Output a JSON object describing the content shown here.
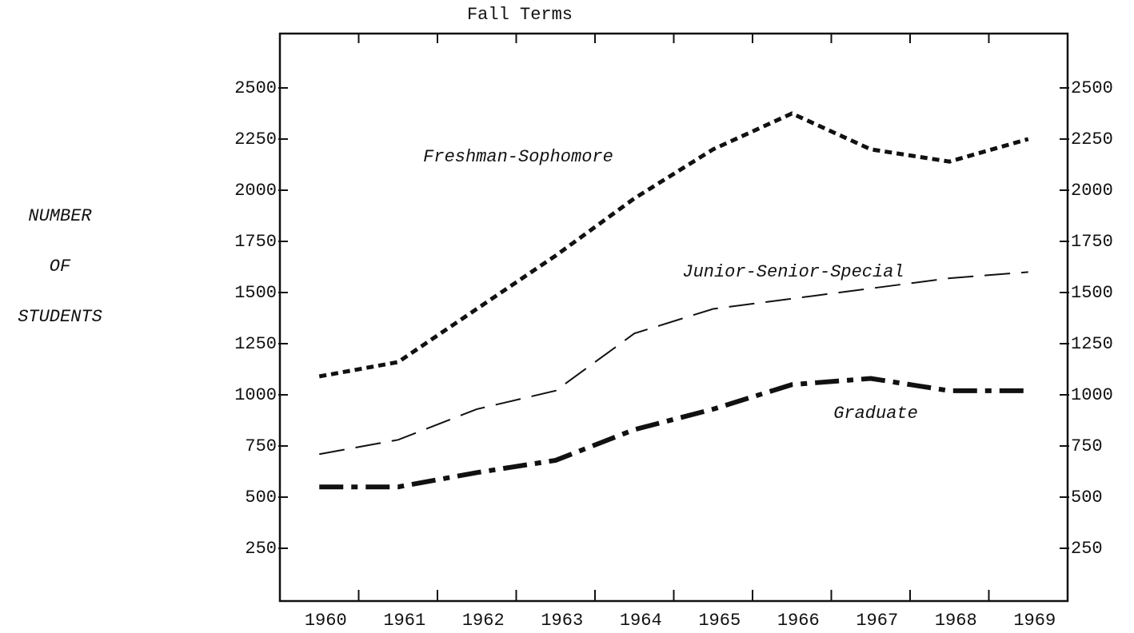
{
  "chart_data": {
    "type": "line",
    "title": "Fall Terms",
    "ylabel": [
      "NUMBER",
      "OF",
      "STUDENTS"
    ],
    "categories": [
      "1960",
      "1961",
      "1962",
      "1963",
      "1964",
      "1965",
      "1966",
      "1967",
      "1968",
      "1969"
    ],
    "series": [
      {
        "name": "Freshman-Sophomore",
        "color": "#111111",
        "dash": "dotted",
        "values": [
          1090,
          1160,
          1420,
          1680,
          1960,
          2200,
          2375,
          2200,
          2140,
          2250
        ]
      },
      {
        "name": "Junior-Senior-Special",
        "color": "#111111",
        "dash": "long",
        "values": [
          710,
          780,
          930,
          1020,
          1300,
          1420,
          1470,
          1520,
          1570,
          1600
        ]
      },
      {
        "name": "Graduate",
        "color": "#111111",
        "dash": "dashdot",
        "values": [
          550,
          550,
          620,
          680,
          830,
          930,
          1050,
          1080,
          1020,
          1020
        ]
      }
    ],
    "ylim": [
      0,
      2750
    ],
    "yticks": [
      250,
      500,
      750,
      1000,
      1250,
      1500,
      1750,
      2000,
      2250,
      2500
    ],
    "y2lim": [
      0,
      2750
    ],
    "y2ticks": [
      250,
      500,
      750,
      1000,
      1250,
      1500,
      1750,
      2000,
      2250,
      2500
    ],
    "grid": false
  }
}
